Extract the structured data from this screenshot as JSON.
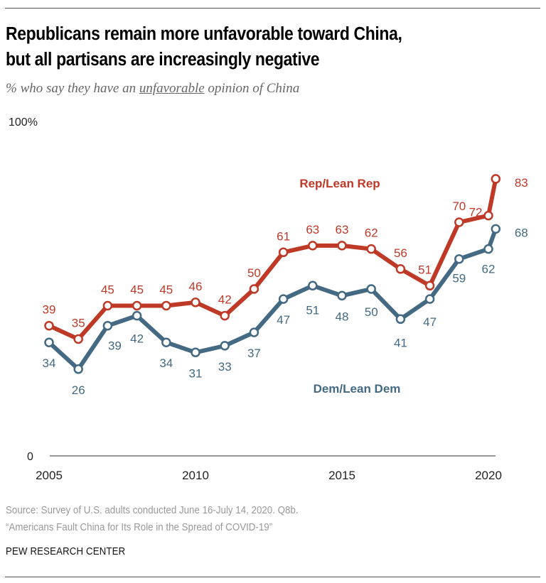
{
  "title_line1": "Republicans remain more unfavorable toward China,",
  "title_line2": "but all partisans are increasingly negative",
  "subtitle_pre": "% who say they have an ",
  "subtitle_underlined": "unfavorable",
  "subtitle_post": " opinion of China",
  "source_line1": "Source: Survey of U.S. adults conducted June 16-July 14, 2020. Q8b.",
  "source_line2": "“Americans Fault China for Its Role in the Spread of COVID-19”",
  "brand": "PEW RESEARCH CENTER",
  "chart_data": {
    "type": "line",
    "title": "Republicans remain more unfavorable toward China, but all partisans are increasingly negative",
    "subtitle": "% who say they have an unfavorable opinion of China",
    "xlabel": "",
    "ylabel": "",
    "ylim": [
      0,
      100
    ],
    "xlim": [
      2005,
      2020.25
    ],
    "y_tick_labels": [
      {
        "value": 0,
        "label": "0"
      },
      {
        "value": 100,
        "label": "100%"
      }
    ],
    "x_tick_labels": [
      {
        "value": 2005,
        "label": "2005"
      },
      {
        "value": 2010,
        "label": "2010"
      },
      {
        "value": 2015,
        "label": "2015"
      },
      {
        "value": 2020,
        "label": "2020"
      }
    ],
    "grid": false,
    "x": [
      2005,
      2006,
      2007,
      2008,
      2009,
      2010,
      2011,
      2012,
      2013,
      2014,
      2015,
      2016,
      2017,
      2018,
      2019,
      2020,
      2020.25
    ],
    "series": [
      {
        "name": "Rep/Lean Rep",
        "color": "#BF3927",
        "values": [
          39,
          35,
          45,
          45,
          45,
          46,
          42,
          50,
          61,
          63,
          63,
          62,
          56,
          51,
          70,
          72,
          83
        ]
      },
      {
        "name": "Dem/Lean Dem",
        "color": "#436983",
        "values": [
          34,
          26,
          39,
          42,
          34,
          31,
          33,
          37,
          47,
          51,
          48,
          50,
          41,
          47,
          59,
          62,
          68
        ]
      }
    ]
  }
}
